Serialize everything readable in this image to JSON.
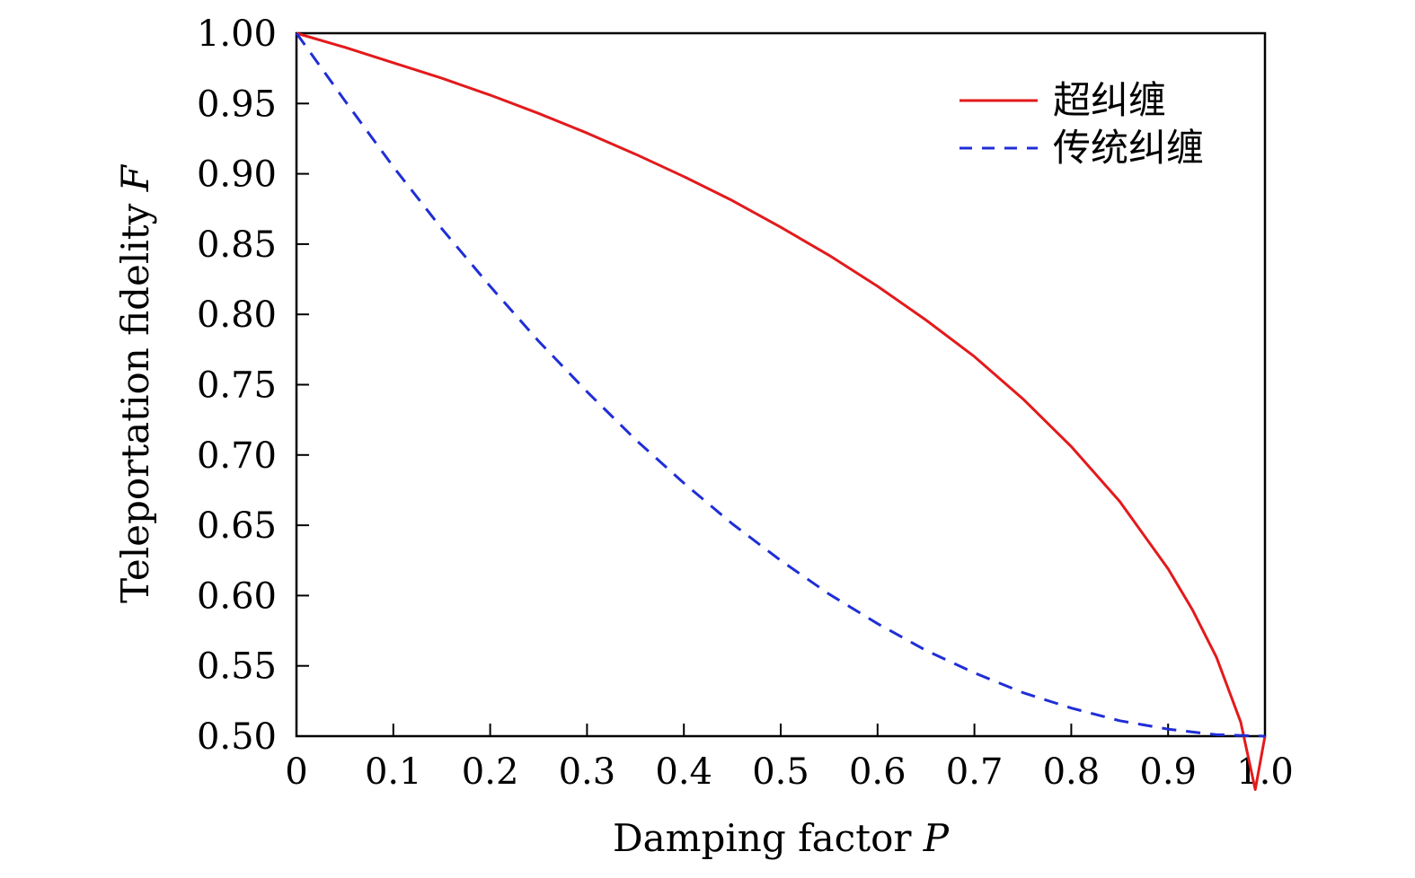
{
  "chart_data": {
    "type": "line",
    "xlabel": "Damping factor",
    "xlabel_var": "P",
    "ylabel": "Teleportation fidelity",
    "ylabel_var": "F",
    "xlim": [
      0,
      1
    ],
    "ylim": [
      0.5,
      1.0
    ],
    "x_ticks": [
      0,
      0.1,
      0.2,
      0.3,
      0.4,
      0.5,
      0.6,
      0.7,
      0.8,
      0.9,
      1.0
    ],
    "x_tick_labels": [
      "0",
      "0.1",
      "0.2",
      "0.3",
      "0.4",
      "0.5",
      "0.6",
      "0.7",
      "0.8",
      "0.9",
      "1.0"
    ],
    "y_ticks": [
      0.5,
      0.55,
      0.6,
      0.65,
      0.7,
      0.75,
      0.8,
      0.85,
      0.9,
      0.95,
      1.0
    ],
    "y_tick_labels": [
      "0.50",
      "0.55",
      "0.60",
      "0.65",
      "0.70",
      "0.75",
      "0.80",
      "0.85",
      "0.90",
      "0.95",
      "1.00"
    ],
    "grid": false,
    "legend_position": "top-right",
    "series": [
      {
        "name": "超纠缠",
        "color": "#e31a1c",
        "dash": "solid",
        "x": [
          0,
          0.05,
          0.1,
          0.15,
          0.2,
          0.25,
          0.3,
          0.35,
          0.4,
          0.45,
          0.5,
          0.55,
          0.6,
          0.65,
          0.7,
          0.75,
          0.8,
          0.85,
          0.9,
          0.925,
          0.95,
          0.975,
          0.99,
          1.0
        ],
        "y": [
          1.0,
          0.99,
          0.979,
          0.968,
          0.956,
          0.943,
          0.929,
          0.914,
          0.898,
          0.881,
          0.862,
          0.842,
          0.82,
          0.796,
          0.77,
          0.74,
          0.706,
          0.667,
          0.619,
          0.59,
          0.556,
          0.51,
          0.462,
          0.5
        ]
      },
      {
        "name": "传统纠缠",
        "color": "#1f2ed6",
        "dash": "dashed",
        "x": [
          0,
          0.05,
          0.1,
          0.15,
          0.2,
          0.25,
          0.3,
          0.35,
          0.4,
          0.45,
          0.5,
          0.55,
          0.6,
          0.65,
          0.7,
          0.75,
          0.8,
          0.85,
          0.9,
          0.95,
          1.0
        ],
        "y": [
          1.0,
          0.952,
          0.905,
          0.861,
          0.82,
          0.781,
          0.745,
          0.711,
          0.68,
          0.651,
          0.625,
          0.601,
          0.58,
          0.561,
          0.545,
          0.531,
          0.52,
          0.511,
          0.505,
          0.501,
          0.5
        ]
      }
    ]
  }
}
